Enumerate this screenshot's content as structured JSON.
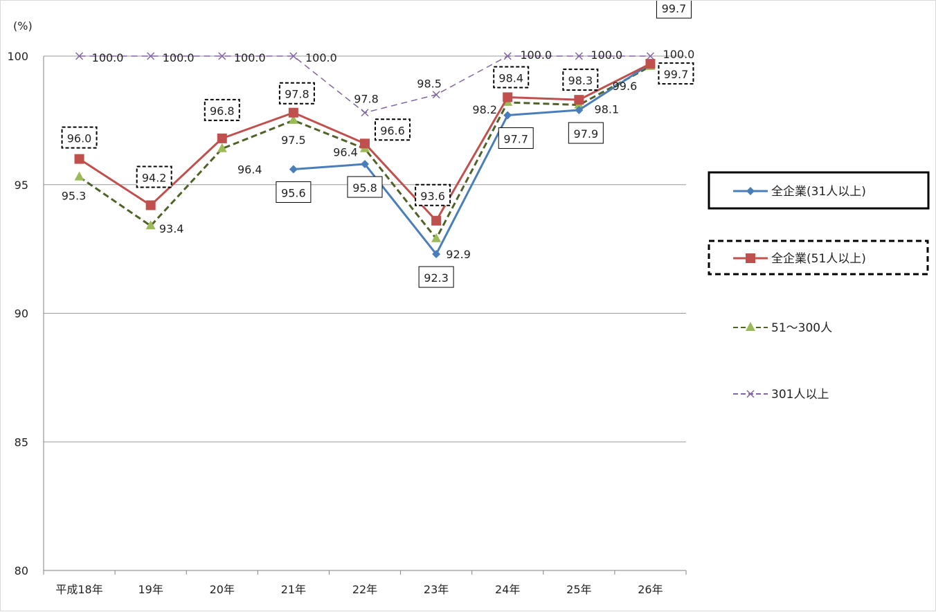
{
  "chart_data": {
    "type": "line",
    "unit_label": "(%)",
    "categories": [
      "平成18年",
      "19年",
      "20年",
      "21年",
      "22年",
      "23年",
      "24年",
      "25年",
      "26年"
    ],
    "ylim": [
      80,
      100
    ],
    "yticks": [
      80,
      85,
      90,
      95,
      100
    ],
    "grid": true,
    "legend_position": "right",
    "series": [
      {
        "name": "全企業(31人以上)",
        "color": "#4a7ebb",
        "marker": "diamond",
        "line_style": "solid",
        "legend_box": "solid",
        "values": [
          null,
          null,
          null,
          95.6,
          95.8,
          92.3,
          97.7,
          97.9,
          99.7
        ],
        "labels": [
          "",
          "",
          "",
          "95.6",
          "95.8",
          "92.3",
          "97.7",
          "97.9",
          "99.7"
        ],
        "label_box": "solid"
      },
      {
        "name": "全企業(51人以上)",
        "color": "#c0504d",
        "marker": "square",
        "line_style": "solid",
        "legend_box": "dashed",
        "values": [
          96.0,
          94.2,
          96.8,
          97.8,
          96.6,
          93.6,
          98.4,
          98.3,
          99.7
        ],
        "labels": [
          "96.0",
          "94.2",
          "96.8",
          "97.8",
          "96.6",
          "93.6",
          "98.4",
          "98.3",
          "99.7"
        ],
        "label_box": "dashed"
      },
      {
        "name": "51～300人",
        "color": "#4f6228",
        "marker_color": "#9bbb59",
        "marker": "triangle",
        "line_style": "dashed",
        "legend_box": "none",
        "values": [
          95.3,
          93.4,
          96.4,
          97.5,
          96.4,
          92.9,
          98.2,
          98.1,
          99.6
        ],
        "labels": [
          "95.3",
          "93.4",
          "96.4",
          "97.5",
          "96.4",
          "92.9",
          "98.2",
          "98.1",
          "99.6"
        ],
        "label_box": "none"
      },
      {
        "name": "301人以上",
        "color": "#8064a2",
        "marker": "x",
        "line_style": "dashed",
        "legend_box": "none",
        "values": [
          100.0,
          100.0,
          100.0,
          100.0,
          97.8,
          98.5,
          100.0,
          100.0,
          100.0
        ],
        "labels": [
          "100.0",
          "100.0",
          "100.0",
          "100.0",
          "97.8",
          "98.5",
          "100.0",
          "100.0",
          "100.0"
        ],
        "label_box": "none"
      }
    ]
  }
}
